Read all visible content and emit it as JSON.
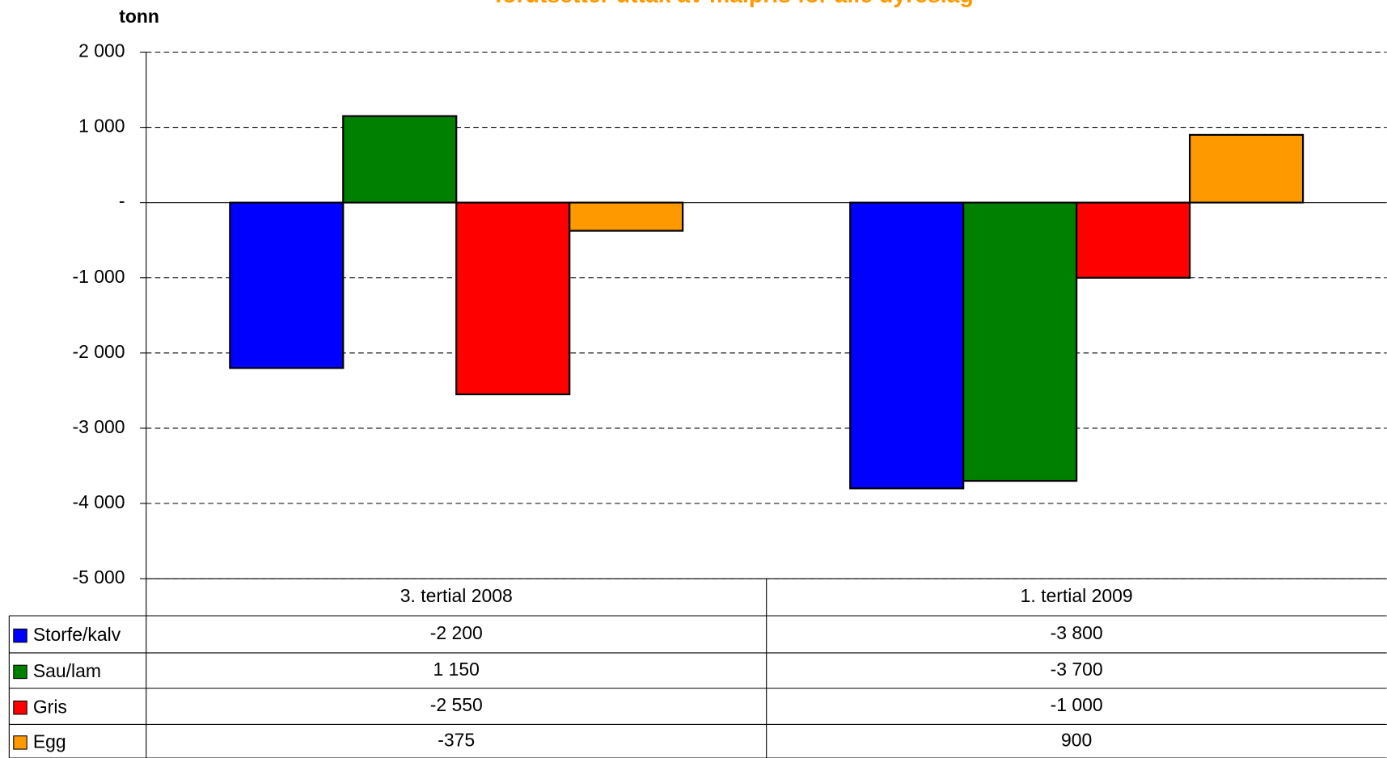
{
  "chart_data": {
    "type": "bar",
    "title": "forutsetter uttak av målpris for alle dyreslag",
    "y_label": "tonn",
    "categories": [
      "3. tertial 2008",
      "1. tertial 2009"
    ],
    "series": [
      {
        "name": "Storfe/kalv",
        "color": "#0000ff",
        "values": [
          -2200,
          -3800
        ],
        "value_labels": [
          "-2 200",
          "-3 800"
        ]
      },
      {
        "name": "Sau/lam",
        "color": "#008000",
        "values": [
          1150,
          -3700
        ],
        "value_labels": [
          "1 150",
          "-3 700"
        ]
      },
      {
        "name": "Gris",
        "color": "#ff0000",
        "values": [
          -2550,
          -1000
        ],
        "value_labels": [
          "-2 550",
          "-1 000"
        ]
      },
      {
        "name": "Egg",
        "color": "#ff9900",
        "values": [
          -375,
          900
        ],
        "value_labels": [
          "-375",
          "900"
        ]
      }
    ],
    "ylim": [
      -5000,
      2000
    ],
    "yticks": [
      {
        "value": 2000,
        "label": "2 000"
      },
      {
        "value": 1000,
        "label": "1 000"
      },
      {
        "value": 0,
        "label": "-"
      },
      {
        "value": -1000,
        "label": "-1 000"
      },
      {
        "value": -2000,
        "label": "-2 000"
      },
      {
        "value": -3000,
        "label": "-3 000"
      },
      {
        "value": -4000,
        "label": "-4 000"
      },
      {
        "value": -5000,
        "label": "-5 000"
      }
    ],
    "grid": true
  }
}
